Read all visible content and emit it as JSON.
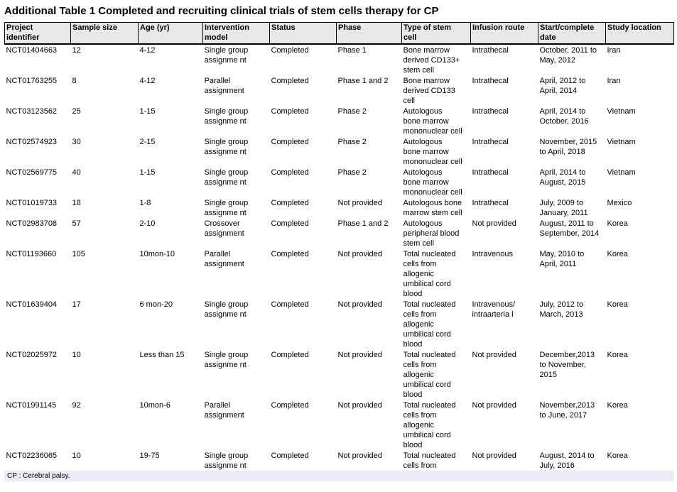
{
  "title": "Additional Table 1 Completed and recruiting clinical trials of stem cells therapy for CP",
  "footnote": "CP : Cerebral palsy.",
  "colors": {
    "page_bg": "#ffffff",
    "text": "#000000",
    "border": "#000000",
    "header_bg": "#e8e8e8",
    "footnote_bg": "#eaeaf8"
  },
  "table": {
    "columns": [
      "Project\nidentifier",
      "Sample size",
      "Age (yr)",
      "Intervention\nmodel",
      "Status",
      "Phase",
      "Type of stem\ncell",
      "Infusion route",
      "Start/complete\ndate",
      "Study location"
    ],
    "rows": [
      [
        "NCT01404663",
        "12",
        "4-12",
        "Single group\nassignme nt",
        "Completed",
        "Phase 1",
        "Bone marrow\nderived CD133+\nstem cell",
        "Intrathecal",
        "October, 2011 to\nMay, 2012",
        "Iran"
      ],
      [
        "NCT01763255",
        "8",
        "4-12",
        "Parallel\nassignment",
        "Completed",
        "Phase 1 and 2",
        "Bone marrow\nderived CD133\ncell",
        "Intrathecal",
        "April, 2012 to\nApril, 2014",
        "Iran"
      ],
      [
        "NCT03123562",
        "25",
        "1-15",
        "Single group\nassignme nt",
        "Completed",
        "Phase 2",
        "Autologous\nbone marrow\nmononuclear cell",
        "Intrathecal",
        "April, 2014 to\nOctober, 2016",
        "Vietnam"
      ],
      [
        "NCT02574923",
        "30",
        "2-15",
        "Single group\nassignme nt",
        "Completed",
        "Phase 2",
        "Autologous\nbone marrow\nmononuclear cell",
        "Intrathecal",
        "November, 2015\nto April, 2018",
        "Vietnam"
      ],
      [
        "NCT02569775",
        "40",
        "1-15",
        "Single group\nassignme nt",
        "Completed",
        "Phase 2",
        "Autologous\nbone marrow\nmononuclear cell",
        "Intrathecal",
        "April, 2014 to\nAugust, 2015",
        "Vietnam"
      ],
      [
        "NCT01019733",
        "18",
        "1-8",
        "Single group\nassignme nt",
        "Completed",
        "Not provided",
        "Autologous bone\nmarrow stem cell",
        "Intrathecal",
        "July, 2009 to\nJanuary, 2011",
        "Mexico"
      ],
      [
        "NCT02983708",
        "57",
        "2-10",
        "Crossover\nassignment",
        "Completed",
        "Phase 1 and 2",
        "Autologous\nperipheral blood\nstem cell",
        "Not provided",
        "August, 2011 to\nSeptember, 2014",
        "Korea"
      ],
      [
        "NCT01193660",
        "105",
        "10mon-10",
        "Parallel\nassignment",
        "Completed",
        "Not provided",
        "Total nucleated\ncells from\nallogenic\numbilical cord\nblood",
        "Intravenous",
        "May, 2010 to\nApril, 2011",
        "Korea"
      ],
      [
        "NCT01639404",
        "17",
        "6 mon-20",
        "Single group\nassignme nt",
        "Completed",
        "Not provided",
        "Total nucleated\ncells from\nallogenic\numbilical cord\nblood",
        "Intravenous/\nintraarteria l",
        "July, 2012 to\nMarch, 2013",
        "Korea"
      ],
      [
        "NCT02025972",
        "10",
        "Less than 15",
        "Single group\nassignme nt",
        "Completed",
        "Not provided",
        "Total nucleated\ncells from\nallogenic\numbilical cord\nblood",
        "Not provided",
        "December,2013\nto November,\n2015",
        "Korea"
      ],
      [
        "NCT01991145",
        "92",
        "10mon-6",
        "Parallel\nassignment",
        "Completed",
        "Not provided",
        "Total nucleated\ncells from\nallogenic\numbilical cord\nblood",
        "Not provided",
        "November,2013\nto June, 2017",
        "Korea"
      ],
      [
        "NCT02236065",
        "10",
        "19-75",
        "Single group\nassignme nt",
        "Completed",
        "Not provided",
        "Total nucleated\ncells from",
        "Not provided",
        "August, 2014 to\nJuly, 2016",
        "Korea"
      ]
    ]
  }
}
